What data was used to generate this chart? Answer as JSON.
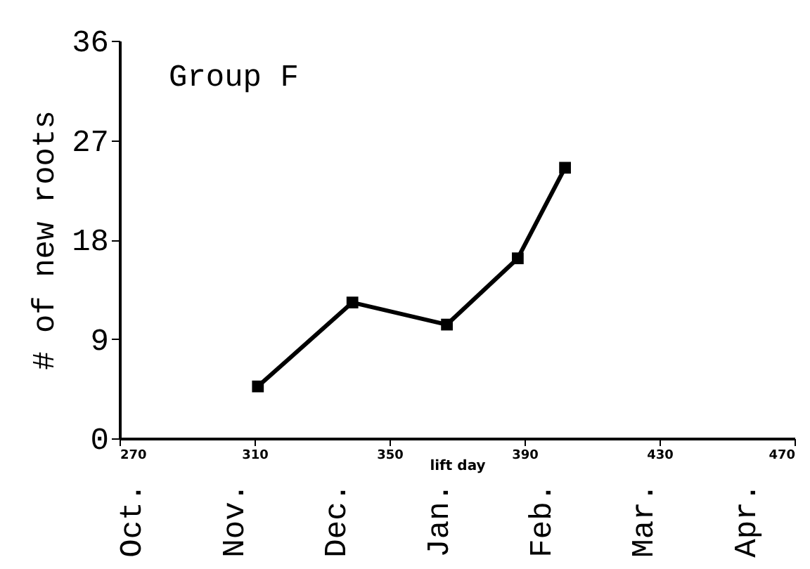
{
  "chart_data": {
    "type": "line",
    "x": [
      311,
      339,
      367,
      388,
      402
    ],
    "series": [
      {
        "color": "#000000",
        "values": [
          4.7,
          12.3,
          10.3,
          16.3,
          24.5
        ]
      }
    ],
    "xlabel": "lift day",
    "ylabel": "# of new roots",
    "annotations": [
      "Group F",
      "Oct.",
      "Nov.",
      "Dec.",
      "Jan.",
      "Feb.",
      "Mar.",
      "Apr."
    ],
    "xlim": [
      270,
      470
    ],
    "xticks": [
      270,
      310,
      350,
      390,
      430,
      470
    ],
    "ylim": [
      0,
      36
    ],
    "yticks": [
      0,
      9,
      18,
      27,
      36
    ],
    "marker": "square",
    "line_style": "solid",
    "grid": false
  }
}
